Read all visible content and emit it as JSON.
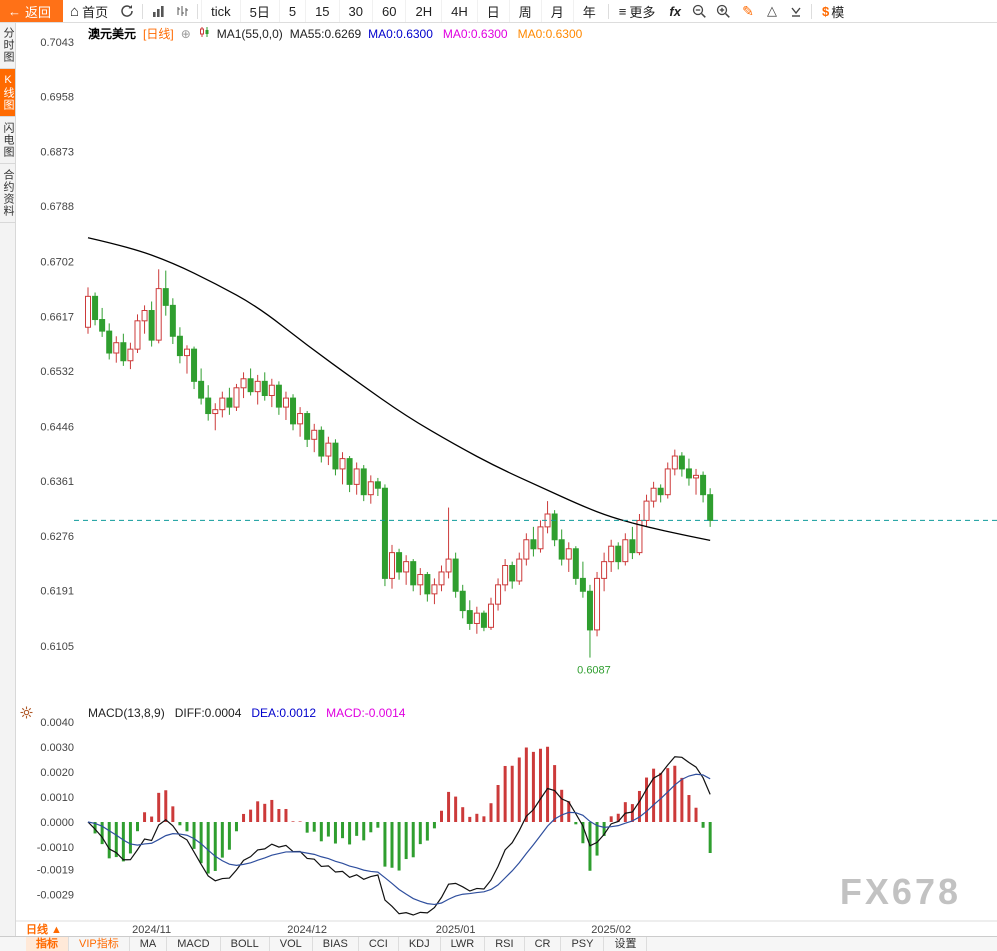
{
  "toolbar": {
    "back_label": "返回",
    "home_label": "首页",
    "periods": [
      {
        "key": "tick",
        "label": "tick"
      },
      {
        "key": "5d",
        "label": "5日"
      },
      {
        "key": "m5",
        "label": "5"
      },
      {
        "key": "m15",
        "label": "15"
      },
      {
        "key": "m30",
        "label": "30"
      },
      {
        "key": "m60",
        "label": "60"
      },
      {
        "key": "2h",
        "label": "2H"
      },
      {
        "key": "4h",
        "label": "4H"
      },
      {
        "key": "day",
        "label": "日"
      },
      {
        "key": "week",
        "label": "周"
      },
      {
        "key": "month",
        "label": "月"
      },
      {
        "key": "year",
        "label": "年"
      }
    ],
    "more_label": "更多",
    "fx_label": "fx",
    "model_label": "$模"
  },
  "sidebar": {
    "items": [
      {
        "key": "timeshare",
        "label": "分时图",
        "active": false
      },
      {
        "key": "kline",
        "label": "K线图",
        "active": true
      },
      {
        "key": "lightning",
        "label": "闪电图",
        "active": false
      },
      {
        "key": "contract-info",
        "label": "合约资料",
        "active": false
      }
    ]
  },
  "chart_header": {
    "symbol": "澳元美元",
    "period_tag": "[日线]",
    "ma_param": "MA1(55,0,0)",
    "ma55_label": "MA55:0.6269",
    "ma_labels": [
      {
        "text": "MA0:0.6300",
        "color": "#0000cc"
      },
      {
        "text": "MA0:0.6300",
        "color": "#e000e0"
      },
      {
        "text": "MA0:0.6300",
        "color": "#ff8800"
      }
    ]
  },
  "macd_header": {
    "param": "MACD(13,8,9)",
    "diff": "DIFF:0.0004",
    "dea": "DEA:0.0012",
    "macd": "MACD:-0.0014"
  },
  "bottom": {
    "period_label": "日线 ▲",
    "tabs": [
      {
        "key": "indicator",
        "label": "指标",
        "active": true,
        "vip": false
      },
      {
        "key": "vip-indicator",
        "label": "VIP指标",
        "active": false,
        "vip": true
      },
      {
        "key": "ma",
        "label": "MA",
        "active": false,
        "vip": false
      },
      {
        "key": "macd",
        "label": "MACD",
        "active": false,
        "vip": false
      },
      {
        "key": "boll",
        "label": "BOLL",
        "active": false,
        "vip": false
      },
      {
        "key": "vol",
        "label": "VOL",
        "active": false,
        "vip": false
      },
      {
        "key": "bias",
        "label": "BIAS",
        "active": false,
        "vip": false
      },
      {
        "key": "cci",
        "label": "CCI",
        "active": false,
        "vip": false
      },
      {
        "key": "kdj",
        "label": "KDJ",
        "active": false,
        "vip": false
      },
      {
        "key": "lwr",
        "label": "LWR",
        "active": false,
        "vip": false
      },
      {
        "key": "rsi",
        "label": "RSI",
        "active": false,
        "vip": false
      },
      {
        "key": "cr",
        "label": "CR",
        "active": false,
        "vip": false
      },
      {
        "key": "psy",
        "label": "PSY",
        "active": false,
        "vip": false
      },
      {
        "key": "settings",
        "label": "设置",
        "active": false,
        "vip": false
      }
    ]
  },
  "watermark": "FX678",
  "chart_data": {
    "type": "candlestick",
    "title": "澳元美元 [日线] AUD/USD daily with MA55 and MACD(13,8,9)",
    "price_axis": {
      "max": 0.7043,
      "min": 0.6105
    },
    "y_axis_labels": [
      "0.7043",
      "0.6958",
      "0.6873",
      "0.6788",
      "0.6702",
      "0.6617",
      "0.6532",
      "0.6446",
      "0.6361",
      "0.6276",
      "0.6191",
      "0.6105"
    ],
    "macd_axis_labels": [
      "0.0040",
      "0.0030",
      "0.0020",
      "0.0010",
      "0.0000",
      "-0.0010",
      "-0.0019",
      "-0.0029"
    ],
    "x_axis_labels": [
      {
        "index": 9,
        "label": "2024/11"
      },
      {
        "index": 31,
        "label": "2024/12"
      },
      {
        "index": 52,
        "label": "2025/01"
      },
      {
        "index": 74,
        "label": "2025/02"
      }
    ],
    "current_price": 0.63,
    "low_annotation": {
      "index": 71,
      "text": "0.6087"
    },
    "ma55": [
      [
        0,
        0.6739
      ],
      [
        6,
        0.6724
      ],
      [
        12,
        0.67
      ],
      [
        18,
        0.6668
      ],
      [
        24,
        0.6632
      ],
      [
        31,
        0.6572
      ],
      [
        38,
        0.6516
      ],
      [
        45,
        0.6462
      ],
      [
        52,
        0.6417
      ],
      [
        58,
        0.6382
      ],
      [
        64,
        0.6352
      ],
      [
        70,
        0.6322
      ],
      [
        74,
        0.6305
      ],
      [
        79,
        0.629
      ],
      [
        84,
        0.6278
      ],
      [
        88,
        0.6269
      ]
    ],
    "candles": [
      [
        0.66,
        0.6662,
        0.659,
        0.6648
      ],
      [
        0.6648,
        0.6654,
        0.6603,
        0.6612
      ],
      [
        0.6612,
        0.663,
        0.6585,
        0.6594
      ],
      [
        0.6594,
        0.6606,
        0.655,
        0.656
      ],
      [
        0.656,
        0.6586,
        0.6545,
        0.6576
      ],
      [
        0.6576,
        0.659,
        0.654,
        0.6548
      ],
      [
        0.6548,
        0.6576,
        0.6535,
        0.6566
      ],
      [
        0.6566,
        0.662,
        0.656,
        0.661
      ],
      [
        0.661,
        0.6634,
        0.659,
        0.6626
      ],
      [
        0.6626,
        0.664,
        0.657,
        0.658
      ],
      [
        0.658,
        0.669,
        0.6575,
        0.666
      ],
      [
        0.666,
        0.6688,
        0.6618,
        0.6634
      ],
      [
        0.6634,
        0.6645,
        0.6574,
        0.6586
      ],
      [
        0.6586,
        0.66,
        0.6544,
        0.6556
      ],
      [
        0.6556,
        0.6572,
        0.6528,
        0.6566
      ],
      [
        0.6566,
        0.657,
        0.6504,
        0.6516
      ],
      [
        0.6516,
        0.6536,
        0.648,
        0.649
      ],
      [
        0.649,
        0.651,
        0.6455,
        0.6466
      ],
      [
        0.6466,
        0.6482,
        0.644,
        0.6472
      ],
      [
        0.6472,
        0.65,
        0.646,
        0.649
      ],
      [
        0.649,
        0.6506,
        0.6464,
        0.6476
      ],
      [
        0.6476,
        0.6512,
        0.647,
        0.6506
      ],
      [
        0.6506,
        0.653,
        0.649,
        0.652
      ],
      [
        0.652,
        0.6536,
        0.6494,
        0.65
      ],
      [
        0.65,
        0.6526,
        0.648,
        0.6516
      ],
      [
        0.6516,
        0.653,
        0.6486,
        0.6494
      ],
      [
        0.6494,
        0.652,
        0.6476,
        0.651
      ],
      [
        0.651,
        0.6516,
        0.6464,
        0.6476
      ],
      [
        0.6476,
        0.65,
        0.6456,
        0.649
      ],
      [
        0.649,
        0.6496,
        0.644,
        0.645
      ],
      [
        0.645,
        0.6476,
        0.643,
        0.6466
      ],
      [
        0.6466,
        0.647,
        0.6414,
        0.6426
      ],
      [
        0.6426,
        0.645,
        0.6406,
        0.644
      ],
      [
        0.644,
        0.6446,
        0.639,
        0.64
      ],
      [
        0.64,
        0.643,
        0.6386,
        0.642
      ],
      [
        0.642,
        0.6426,
        0.637,
        0.638
      ],
      [
        0.638,
        0.6406,
        0.6356,
        0.6396
      ],
      [
        0.6396,
        0.64,
        0.6344,
        0.6356
      ],
      [
        0.6356,
        0.639,
        0.634,
        0.638
      ],
      [
        0.638,
        0.6386,
        0.633,
        0.634
      ],
      [
        0.634,
        0.637,
        0.6326,
        0.636
      ],
      [
        0.636,
        0.6366,
        0.6338,
        0.635
      ],
      [
        0.635,
        0.6356,
        0.6198,
        0.621
      ],
      [
        0.621,
        0.6262,
        0.6194,
        0.625
      ],
      [
        0.625,
        0.6256,
        0.6208,
        0.622
      ],
      [
        0.622,
        0.6246,
        0.62,
        0.6236
      ],
      [
        0.6236,
        0.624,
        0.619,
        0.62
      ],
      [
        0.62,
        0.6226,
        0.6184,
        0.6216
      ],
      [
        0.6216,
        0.622,
        0.6174,
        0.6186
      ],
      [
        0.6186,
        0.621,
        0.617,
        0.62
      ],
      [
        0.62,
        0.623,
        0.619,
        0.622
      ],
      [
        0.622,
        0.632,
        0.621,
        0.624
      ],
      [
        0.624,
        0.625,
        0.618,
        0.619
      ],
      [
        0.619,
        0.62,
        0.6148,
        0.616
      ],
      [
        0.616,
        0.6176,
        0.613,
        0.614
      ],
      [
        0.614,
        0.6166,
        0.6124,
        0.6156
      ],
      [
        0.6156,
        0.616,
        0.6128,
        0.6134
      ],
      [
        0.6134,
        0.618,
        0.613,
        0.617
      ],
      [
        0.617,
        0.621,
        0.616,
        0.62
      ],
      [
        0.62,
        0.624,
        0.619,
        0.623
      ],
      [
        0.623,
        0.6236,
        0.6194,
        0.6206
      ],
      [
        0.6206,
        0.625,
        0.62,
        0.624
      ],
      [
        0.624,
        0.628,
        0.623,
        0.627
      ],
      [
        0.627,
        0.629,
        0.6244,
        0.6256
      ],
      [
        0.6256,
        0.63,
        0.625,
        0.629
      ],
      [
        0.629,
        0.633,
        0.628,
        0.631
      ],
      [
        0.631,
        0.6316,
        0.626,
        0.627
      ],
      [
        0.627,
        0.6286,
        0.623,
        0.624
      ],
      [
        0.624,
        0.6266,
        0.622,
        0.6256
      ],
      [
        0.6256,
        0.626,
        0.62,
        0.621
      ],
      [
        0.621,
        0.6236,
        0.618,
        0.619
      ],
      [
        0.619,
        0.62,
        0.6087,
        0.613
      ],
      [
        0.613,
        0.622,
        0.612,
        0.621
      ],
      [
        0.621,
        0.625,
        0.619,
        0.6236
      ],
      [
        0.6236,
        0.627,
        0.622,
        0.626
      ],
      [
        0.626,
        0.6266,
        0.6224,
        0.6236
      ],
      [
        0.6236,
        0.628,
        0.623,
        0.627
      ],
      [
        0.627,
        0.629,
        0.624,
        0.625
      ],
      [
        0.625,
        0.631,
        0.6246,
        0.63
      ],
      [
        0.63,
        0.634,
        0.629,
        0.633
      ],
      [
        0.633,
        0.636,
        0.632,
        0.635
      ],
      [
        0.635,
        0.6356,
        0.6328,
        0.634
      ],
      [
        0.634,
        0.639,
        0.6334,
        0.638
      ],
      [
        0.638,
        0.641,
        0.637,
        0.64
      ],
      [
        0.64,
        0.6406,
        0.6368,
        0.638
      ],
      [
        0.638,
        0.6396,
        0.6354,
        0.6366
      ],
      [
        0.6366,
        0.638,
        0.634,
        0.637
      ],
      [
        0.637,
        0.6376,
        0.6328,
        0.634
      ],
      [
        0.634,
        0.635,
        0.629,
        0.63
      ]
    ],
    "colors": {
      "up": "#cc3a3a",
      "down": "#2f9e2f",
      "ma": "#000000",
      "dash": "#0f9b9b",
      "diff_line": "#111111",
      "dea_line": "#2f4f9e",
      "accent": "#ff6a00"
    }
  }
}
